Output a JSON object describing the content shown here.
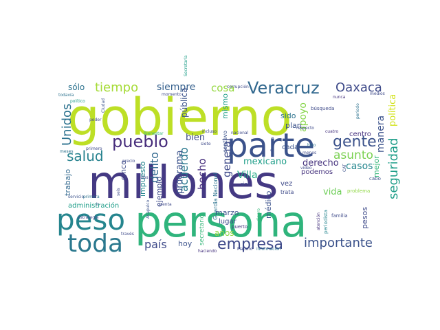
{
  "word_cloud": {
    "palette": {
      "lime": "#bddf26",
      "green": "#2fb47c",
      "teal": "#25858e",
      "blue": "#3b528b",
      "indigo": "#482878",
      "darkblue": "#31688e",
      "mint": "#6ece58",
      "cyan": "#1f9e89"
    },
    "words": [
      {
        "text": "gobierno",
        "color": "#bddf26"
      },
      {
        "text": "millones",
        "color": "#443983"
      },
      {
        "text": "persona",
        "color": "#2fb47c"
      },
      {
        "text": "parte",
        "color": "#3b528b"
      },
      {
        "text": "peso",
        "color": "#25858e"
      },
      {
        "text": "toda",
        "color": "#2a788e"
      },
      {
        "text": "Veracruz",
        "color": "#31688e"
      },
      {
        "text": "Oaxaca",
        "color": "#3e4a89"
      },
      {
        "text": "tiempo",
        "color": "#a5db36"
      },
      {
        "text": "siempre",
        "color": "#35608d"
      },
      {
        "text": "cosa",
        "color": "#95d840"
      },
      {
        "text": "pueblo",
        "color": "#472d7b"
      },
      {
        "text": "gente",
        "color": "#3b528b"
      },
      {
        "text": "salud",
        "color": "#26828e"
      },
      {
        "text": "Unidos",
        "color": "#2c728e"
      },
      {
        "text": "empresa",
        "color": "#3e4989"
      },
      {
        "text": "importante",
        "color": "#3b528b"
      },
      {
        "text": "país",
        "color": "#3e4a89"
      },
      {
        "text": "seguridad",
        "color": "#1f9e89"
      },
      {
        "text": "asunto",
        "color": "#7ad151"
      },
      {
        "text": "delito",
        "color": "#31688e"
      },
      {
        "text": "acuerdo",
        "color": "#2a788e"
      },
      {
        "text": "general",
        "color": "#3e4a89"
      },
      {
        "text": "Villa",
        "color": "#22a884"
      },
      {
        "text": "mexicano",
        "color": "#1f9e89"
      },
      {
        "text": "derecho",
        "color": "#46337e"
      },
      {
        "text": "casos",
        "color": "#24868e"
      },
      {
        "text": "vida",
        "color": "#6ece58"
      },
      {
        "text": "apoyo",
        "color": "#86d549"
      },
      {
        "text": "manera",
        "color": "#3b528b"
      },
      {
        "text": "política",
        "color": "#d2e21b"
      },
      {
        "text": "sólo",
        "color": "#2c728e"
      },
      {
        "text": "bien",
        "color": "#3e4a89"
      },
      {
        "text": "hecho",
        "color": "#472f7d"
      },
      {
        "text": "programa",
        "color": "#3b528b"
      },
      {
        "text": "impuesto",
        "color": "#25858e"
      },
      {
        "text": "pública",
        "color": "#3b528b"
      },
      {
        "text": "mismo",
        "color": "#1f9e89"
      },
      {
        "text": "sido",
        "color": "#2c728e"
      },
      {
        "text": "plan",
        "color": "#3b528b"
      },
      {
        "text": "centro",
        "color": "#46327e"
      },
      {
        "text": "mejor",
        "color": "#35b779"
      },
      {
        "text": "pesos",
        "color": "#3e4a89"
      },
      {
        "text": "trabajo",
        "color": "#31688e"
      },
      {
        "text": "cinco",
        "color": "#3e4a89"
      },
      {
        "text": "ejemplo",
        "color": "#3e4a89"
      },
      {
        "text": "administración",
        "color": "#1f9e89"
      },
      {
        "text": "marzo",
        "color": "#3b528b"
      },
      {
        "text": "lugar",
        "color": "#3e4a89"
      },
      {
        "text": "años",
        "color": "#8fd744"
      },
      {
        "text": "hoy",
        "color": "#3b528b"
      },
      {
        "text": "médico",
        "color": "#3b528b"
      },
      {
        "text": "podemos",
        "color": "#46337e"
      },
      {
        "text": "vez",
        "color": "#3e4a89"
      },
      {
        "text": "cada",
        "color": "#3b528b"
      },
      {
        "text": "secretario",
        "color": "#35b779"
      },
      {
        "text": "centavo",
        "color": "#3b528b"
      },
      {
        "text": "Guardia Nacional",
        "color": "#2c728e"
      },
      {
        "text": "trata",
        "color": "#3e4a89"
      },
      {
        "text": "sino",
        "color": "#3e4a89"
      },
      {
        "text": "puerto",
        "color": "#46337e"
      },
      {
        "text": "periodista",
        "color": "#25858e"
      },
      {
        "text": "familia",
        "color": "#3e4a89"
      },
      {
        "text": "problema",
        "color": "#8fd744"
      },
      {
        "text": "cabo",
        "color": "#3b528b"
      },
      {
        "text": "búsqueda",
        "color": "#3e4a89"
      },
      {
        "text": "nunca",
        "color": "#46337e"
      },
      {
        "text": "medios",
        "color": "#3e4a89"
      },
      {
        "text": "periodo",
        "color": "#2c728e"
      },
      {
        "text": "todavía",
        "color": "#2c728e"
      },
      {
        "text": "político",
        "color": "#1f9e89"
      },
      {
        "text": "poder",
        "color": "#3e4a89"
      },
      {
        "text": "meses",
        "color": "#2c728e"
      },
      {
        "text": "primero",
        "color": "#3e4a89"
      },
      {
        "text": "servicio",
        "color": "#3b528b"
      },
      {
        "text": "primera",
        "color": "#2c728e"
      },
      {
        "text": "estrategia",
        "color": "#3e4a89"
      },
      {
        "text": "través",
        "color": "#3e4a89"
      },
      {
        "text": "haciendo",
        "color": "#46337e"
      },
      {
        "text": "Madero",
        "color": "#3e4a89"
      },
      {
        "text": "información",
        "color": "#2c728e"
      },
      {
        "text": "Acapulco",
        "color": "#3b528b"
      },
      {
        "text": "seis",
        "color": "#3e4a89"
      },
      {
        "text": "cuatro",
        "color": "#46337e"
      },
      {
        "text": "incluso",
        "color": "#3e4a89"
      },
      {
        "text": "nacional",
        "color": "#3e4a89"
      },
      {
        "text": "respecto",
        "color": "#3e4a89"
      },
      {
        "text": "dinero",
        "color": "#35b779"
      },
      {
        "text": "corrupción",
        "color": "#3e4a89"
      },
      {
        "text": "menos",
        "color": "#3e4a89"
      },
      {
        "text": "hizo",
        "color": "#2c728e"
      },
      {
        "text": "video",
        "color": "#3e4a89"
      },
      {
        "text": "CAT",
        "color": "#3b528b"
      },
      {
        "text": "momento",
        "color": "#3e4a89"
      },
      {
        "text": "Bienestar",
        "color": "#35b779"
      },
      {
        "text": "Secretaría",
        "color": "#1f9e89"
      },
      {
        "text": "Ciudad",
        "color": "#3b528b"
      },
      {
        "text": "cuenta",
        "color": "#3e4a89"
      },
      {
        "text": "siete",
        "color": "#3e4a89"
      },
      {
        "text": "atención",
        "color": "#46337e"
      },
      {
        "text": "Cuevas",
        "color": "#3b528b"
      },
      {
        "text": "precio",
        "color": "#3e4a89"
      },
      {
        "text": "ir",
        "color": "#3b528b"
      },
      {
        "text": "dos",
        "color": "#3e4a89"
      }
    ]
  }
}
